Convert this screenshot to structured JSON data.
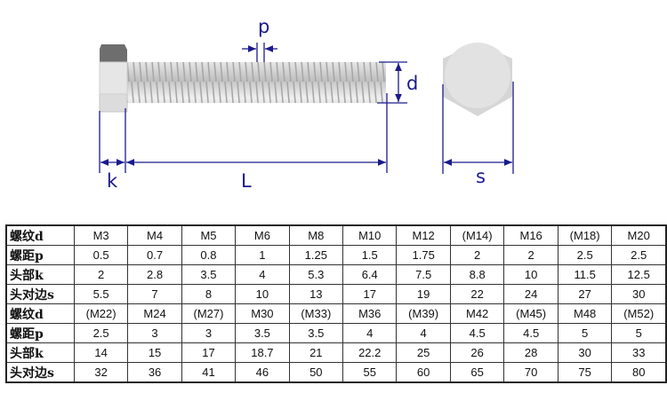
{
  "diagram": {
    "labels": {
      "pitch": "p",
      "diameter": "d",
      "head_height": "k",
      "length": "L",
      "across_flats": "s"
    },
    "colors": {
      "dimension_lines": "#1a1a8c",
      "bolt_metal": "#d9d9d9",
      "head_top": "#6e6e6e"
    }
  },
  "table": {
    "rows": [
      {
        "label": "螺纹d",
        "values": [
          "M3",
          "M4",
          "M5",
          "M6",
          "M8",
          "M10",
          "M12",
          "(M14)",
          "M16",
          "(M18)",
          "M20"
        ]
      },
      {
        "label": "螺距p",
        "values": [
          "0.5",
          "0.7",
          "0.8",
          "1",
          "1.25",
          "1.5",
          "1.75",
          "2",
          "2",
          "2.5",
          "2.5"
        ]
      },
      {
        "label": "头部k",
        "values": [
          "2",
          "2.8",
          "3.5",
          "4",
          "5.3",
          "6.4",
          "7.5",
          "8.8",
          "10",
          "11.5",
          "12.5"
        ]
      },
      {
        "label": "头对边s",
        "values": [
          "5.5",
          "7",
          "8",
          "10",
          "13",
          "17",
          "19",
          "22",
          "24",
          "27",
          "30"
        ]
      },
      {
        "label": "螺纹d",
        "values": [
          "(M22)",
          "M24",
          "(M27)",
          "M30",
          "(M33)",
          "M36",
          "(M39)",
          "M42",
          "(M45)",
          "M48",
          "(M52)"
        ]
      },
      {
        "label": "螺距p",
        "values": [
          "2.5",
          "3",
          "3",
          "3.5",
          "3.5",
          "4",
          "4",
          "4.5",
          "4.5",
          "5",
          "5"
        ]
      },
      {
        "label": "头部k",
        "values": [
          "14",
          "15",
          "17",
          "18.7",
          "21",
          "22.2",
          "25",
          "26",
          "28",
          "30",
          "33"
        ]
      },
      {
        "label": "头对边s",
        "values": [
          "32",
          "36",
          "41",
          "46",
          "50",
          "55",
          "60",
          "65",
          "70",
          "75",
          "80"
        ]
      }
    ]
  }
}
